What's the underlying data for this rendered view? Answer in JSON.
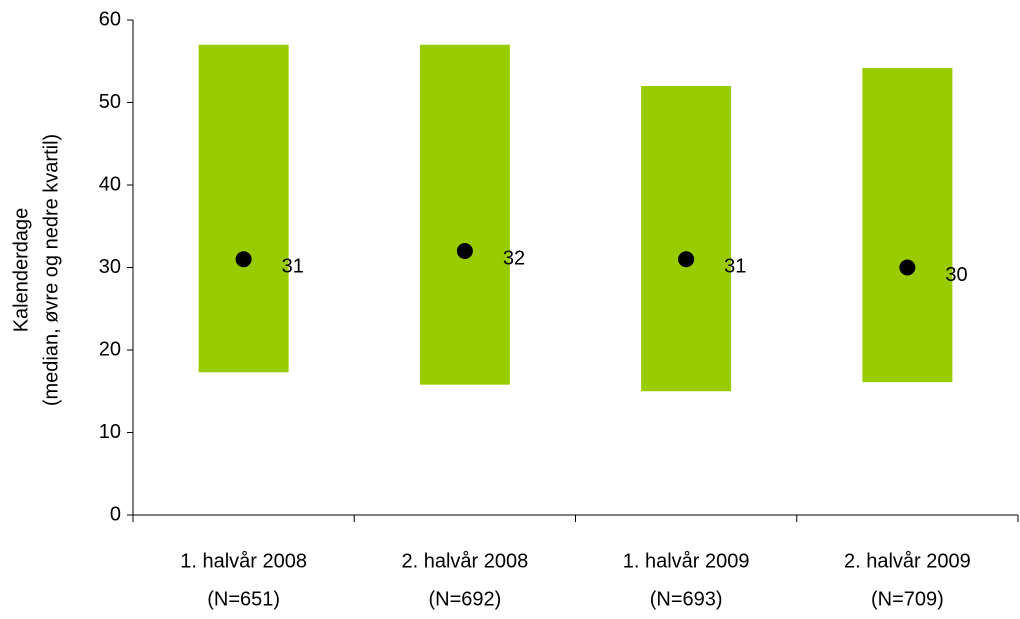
{
  "chart_data": {
    "type": "range",
    "y_label": [
      "Kalenderdage",
      "(median, øvre og nedre kvartil)"
    ],
    "categories": [
      [
        "1. halvår 2008",
        "(N=651)"
      ],
      [
        "2. halvår 2008",
        "(N=692)"
      ],
      [
        "1. halvår 2009",
        "(N=693)"
      ],
      [
        "2. halvår 2009",
        "(N=709)"
      ]
    ],
    "lower": [
      17.3,
      15.8,
      15,
      16.1
    ],
    "upper": [
      57,
      57,
      52,
      54.2
    ],
    "median": [
      31,
      32,
      31,
      30
    ],
    "color": "#99cc00",
    "median_color": "#000000",
    "ylim": [
      0,
      60
    ],
    "yticks": [
      0,
      10,
      20,
      30,
      40,
      50,
      60
    ]
  }
}
